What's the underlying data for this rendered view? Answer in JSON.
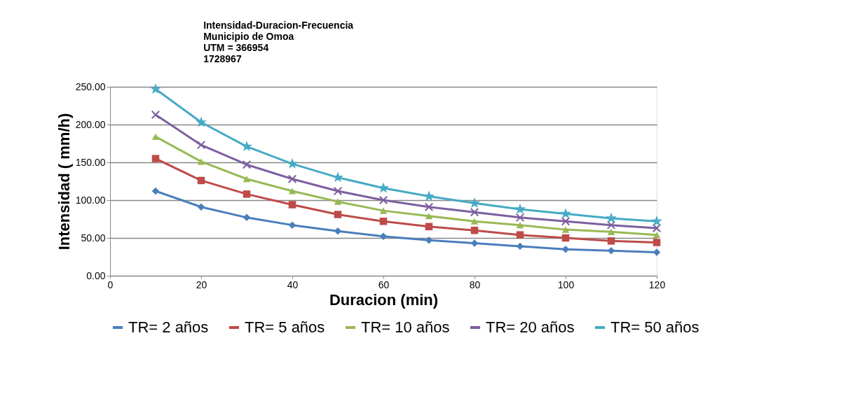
{
  "chart_data": {
    "type": "line",
    "title": "Intensidad-Duracion-Frecuencia\nMunicipio de Omoa\nUTM =  366954\n1728967",
    "xlabel": "Duracion (min)",
    "ylabel": "Intensidad ( mm/h)",
    "x": [
      10,
      20,
      30,
      40,
      50,
      60,
      70,
      80,
      90,
      100,
      110,
      120
    ],
    "xlim": [
      0,
      120
    ],
    "xticks": [
      0,
      20,
      40,
      60,
      80,
      100,
      120
    ],
    "ylim": [
      0,
      250
    ],
    "yticks": [
      {
        "value": 0,
        "label": "0.00"
      },
      {
        "value": 50,
        "label": "50.00"
      },
      {
        "value": 100,
        "label": "100.00"
      },
      {
        "value": 150,
        "label": "150.00"
      },
      {
        "value": 200,
        "label": "200.00"
      },
      {
        "value": 250,
        "label": "250.00"
      }
    ],
    "grid": "y",
    "legend": "bottom",
    "line_style": "solid",
    "series": [
      {
        "name": "TR= 2 años",
        "color": "#4a7ebb",
        "marker": "diamond",
        "values": [
          112,
          91,
          77,
          67,
          59,
          52,
          47,
          43,
          39,
          35,
          33,
          31
        ]
      },
      {
        "name": "TR= 5 años",
        "color": "#be4b48",
        "marker": "square",
        "values": [
          155,
          126,
          108,
          94,
          81,
          72,
          65,
          60,
          54,
          50,
          46,
          44
        ]
      },
      {
        "name": "TR= 10 años",
        "color": "#98b954",
        "marker": "triangle",
        "values": [
          184,
          151,
          128,
          112,
          98,
          86,
          79,
          72,
          67,
          61,
          58,
          54
        ]
      },
      {
        "name": "TR= 20 años",
        "color": "#7d5fa0",
        "marker": "cross",
        "values": [
          213,
          173,
          147,
          128,
          112,
          100,
          91,
          84,
          77,
          72,
          67,
          63
        ]
      },
      {
        "name": "TR= 50 años",
        "color": "#46aac5",
        "marker": "star",
        "values": [
          247,
          203,
          171,
          148,
          130,
          116,
          105,
          96,
          88,
          82,
          76,
          72
        ]
      }
    ]
  }
}
